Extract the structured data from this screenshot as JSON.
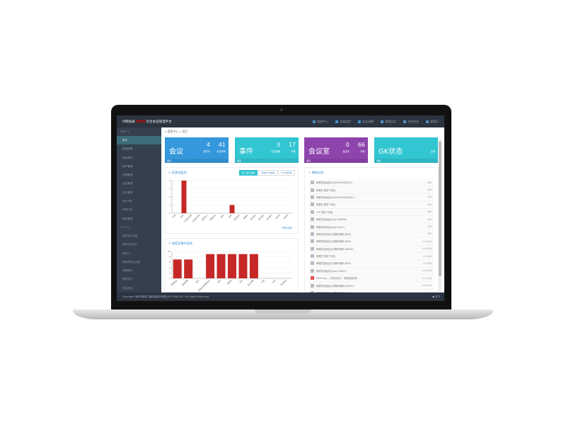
{
  "topbar": {
    "logo_brand": "IP网视通",
    "logo_mark": "VIDM",
    "title": "综合会议管理平台",
    "links": [
      "管理中心",
      "资源监控",
      "会议录播",
      "视频会议",
      "系统信息",
      "管理员"
    ]
  },
  "sidebar": {
    "group1": "管理中心",
    "items": [
      "首页",
      "基础配置",
      "组织架构",
      "用户管理",
      "资源管理",
      "会议管理",
      "文件管理",
      "统计分析",
      "系统日志",
      "授权管理"
    ],
    "group2": "用户中心",
    "items2": [
      "我的会议日程",
      "我的会议资产",
      "联系人",
      "我的预约会议室",
      "我的操作",
      "我的文件",
      "在线文档"
    ]
  },
  "breadcrumb": {
    "home": "管理中心",
    "sep": ">",
    "current": "首页"
  },
  "cards": [
    {
      "title": "会议",
      "n1": "4",
      "l1": "进行中",
      "n2": "41",
      "l2": "今日所有",
      "footer": "更多",
      "color": "#3598dc"
    },
    {
      "title": "事件",
      "n1": "3",
      "l1": "正在处理",
      "n2": "17",
      "l2": "所有",
      "footer": "更多",
      "color": "#32c5d2"
    },
    {
      "title": "会议室",
      "n1": "0",
      "l1": "会议中",
      "n2": "66",
      "l2": "所有",
      "footer": "更多",
      "color": "#8e44ad"
    },
    {
      "title": "GK状态",
      "n1": "",
      "l1": "",
      "n2": "",
      "l2": "正常",
      "footer": "详情",
      "color": "#32c5d2"
    }
  ],
  "chart1": {
    "title": "资源池监控",
    "tabs": [
      "接入会议室数",
      "有效MCU数量",
      "MCU使用率"
    ],
    "more": "所有记录"
  },
  "chart2": {
    "title": "调度台事件监控"
  },
  "chart_data": [
    {
      "type": "bar",
      "ylim": [
        0,
        4
      ],
      "yticks": [
        0,
        1,
        2,
        3,
        4
      ],
      "categories": [
        "市局",
        "测试",
        "分局会议室",
        "区县会议室",
        "指挥中心",
        "视频会议",
        "会议",
        "监控",
        "测试会议",
        "调度台",
        "会议室1",
        "会议室2",
        "会议室3",
        "分会场",
        "主会场"
      ],
      "values": [
        0,
        4,
        0,
        0,
        0,
        0,
        0,
        1,
        0,
        0,
        0,
        0,
        0,
        0,
        0
      ],
      "color": "#c62828"
    },
    {
      "type": "bar",
      "ylim": [
        0,
        10
      ],
      "yticks": [
        0,
        2,
        4,
        6,
        8,
        10
      ],
      "categories": [
        "视频会议",
        "指挥调度",
        "会议",
        "视频监控调度会议",
        "测试",
        "调度台",
        "会场",
        "会议调度",
        "分会",
        "主会",
        "测试会议"
      ],
      "values": [
        7,
        7,
        0,
        9,
        9,
        9,
        9,
        9,
        0,
        0,
        0
      ],
      "color": "#c62828"
    }
  ],
  "activity": {
    "title": "最新动态",
    "items": [
      {
        "msg": "管理员结束会议(Qt8054958)(621)",
        "time": "刚刚",
        "icon": "meeting"
      },
      {
        "msg": "管理员 登录了系统。",
        "time": "刚刚",
        "icon": "user"
      },
      {
        "msg": "管理员创建会议(Qt8054958)(ID621)",
        "time": "刚刚",
        "icon": "meeting"
      },
      {
        "msg": "管理员 登录了系统。",
        "time": "刚刚",
        "icon": "user"
      },
      {
        "msg": "100 登录了系统。",
        "time": "刚刚",
        "icon": "user"
      },
      {
        "msg": "管理员创建会议(gw1)(ID630)",
        "time": "刚刚",
        "icon": "meeting"
      },
      {
        "msg": "管理员结束会议(gw1)(627)",
        "time": "刚刚",
        "icon": "meeting"
      },
      {
        "msg": "管理员结束会议(成鹏市备用)(628)",
        "time": "刚刚",
        "icon": "meeting"
      },
      {
        "msg": "管理员结束会议(成鹏市备用)(626)",
        "time": "60分钟前",
        "icon": "meeting"
      },
      {
        "msg": "管理员结束会议(成鹏市备用)(ID628)",
        "time": "60分钟前",
        "icon": "meeting"
      },
      {
        "msg": "管理员 登录了系统。",
        "time": "70分钟前",
        "icon": "user"
      },
      {
        "msg": "管理员结束会议(成鹏市备用)(626)",
        "time": "70分钟前",
        "icon": "meeting"
      },
      {
        "msg": "管理员创建会议(gw1)(ID627)",
        "time": "80分钟前",
        "icon": "meeting"
      },
      {
        "msg": "MCU bug---- 状态变化为：网络连接失败",
        "time": "80分钟前",
        "icon": "alert"
      },
      {
        "msg": "管理员创建会议(成鹏市备用)(ID626)",
        "time": "90分钟前",
        "icon": "meeting"
      },
      {
        "msg": "管理员创建会议(成鹏市备用)(625)",
        "time": "100分钟前",
        "icon": "meeting"
      }
    ]
  },
  "footer": {
    "copyright": "Copyright 深圳市捷视飞通科技股份有限公司 2008-2017 All Rights Reserved",
    "about": "关于"
  }
}
